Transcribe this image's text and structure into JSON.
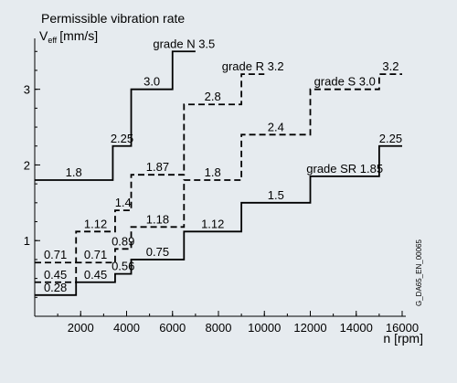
{
  "chart_data": {
    "type": "line",
    "title": "Permissible vibration rate",
    "ylabel_main": "V",
    "ylabel_sub": "eff",
    "ylabel_unit": "[mm/s]",
    "xlabel": "n  [rpm]",
    "figure_id": "G_DA65_EN_00065",
    "x_ticks": [
      2000,
      4000,
      6000,
      8000,
      10000,
      12000,
      14000,
      16000
    ],
    "x_tick_labels": [
      "2000",
      "4000",
      "6000",
      "8000",
      "10000",
      "12000",
      "14000",
      "16000"
    ],
    "y_ticks": [
      1,
      2,
      3
    ],
    "y_tick_labels": [
      "1",
      "2",
      "3"
    ],
    "xlim": [
      0,
      16000
    ],
    "ylim": [
      0,
      3.6
    ],
    "grid": false,
    "step_curve_type": "step",
    "series": [
      {
        "name": "grade N",
        "line_style": "solid",
        "steps": [
          {
            "x_start": 0,
            "x_end": 3400,
            "y": 1.8,
            "label": "1.8"
          },
          {
            "x_start": 3400,
            "x_end": 4200,
            "y": 2.25,
            "label": "2.25"
          },
          {
            "x_start": 4200,
            "x_end": 6000,
            "y": 3.0,
            "label": "3.0"
          },
          {
            "x_start": 6000,
            "x_end": 7000,
            "y": 3.5,
            "label": "grade N 3.5"
          }
        ]
      },
      {
        "name": "grade R",
        "line_style": "dashed",
        "steps": [
          {
            "x_start": 0,
            "x_end": 1800,
            "y": 0.71,
            "label": "0.71"
          },
          {
            "x_start": 1800,
            "x_end": 3500,
            "y": 1.12,
            "label": "1.12"
          },
          {
            "x_start": 3500,
            "x_end": 4200,
            "y": 1.4,
            "label": "1.4"
          },
          {
            "x_start": 4200,
            "x_end": 6500,
            "y": 1.87,
            "label": "1.87"
          },
          {
            "x_start": 6500,
            "x_end": 9000,
            "y": 2.8,
            "label": "2.8"
          },
          {
            "x_start": 9000,
            "x_end": 10000,
            "y": 3.2,
            "label": "grade R 3.2"
          }
        ]
      },
      {
        "name": "grade S",
        "line_style": "dashed",
        "steps": [
          {
            "x_start": 0,
            "x_end": 1800,
            "y": 0.45,
            "label": "0.45"
          },
          {
            "x_start": 1800,
            "x_end": 3500,
            "y": 0.71,
            "label": "0.71"
          },
          {
            "x_start": 3500,
            "x_end": 4200,
            "y": 0.89,
            "label": "0.89"
          },
          {
            "x_start": 4200,
            "x_end": 6500,
            "y": 1.18,
            "label": "1.18"
          },
          {
            "x_start": 6500,
            "x_end": 9000,
            "y": 1.8,
            "label": "1.8"
          },
          {
            "x_start": 9000,
            "x_end": 12000,
            "y": 2.4,
            "label": "2.4"
          },
          {
            "x_start": 12000,
            "x_end": 15000,
            "y": 3.0,
            "label": "grade S 3.0"
          },
          {
            "x_start": 15000,
            "x_end": 16000,
            "y": 3.2,
            "label": "3.2"
          }
        ]
      },
      {
        "name": "grade SR",
        "line_style": "solid",
        "steps": [
          {
            "x_start": 0,
            "x_end": 1800,
            "y": 0.28,
            "label": "0.28"
          },
          {
            "x_start": 1800,
            "x_end": 3500,
            "y": 0.45,
            "label": "0.45"
          },
          {
            "x_start": 3500,
            "x_end": 4200,
            "y": 0.56,
            "label": "0.56"
          },
          {
            "x_start": 4200,
            "x_end": 6500,
            "y": 0.75,
            "label": "0.75"
          },
          {
            "x_start": 6500,
            "x_end": 9000,
            "y": 1.12,
            "label": "1.12"
          },
          {
            "x_start": 9000,
            "x_end": 12000,
            "y": 1.5,
            "label": "1.5"
          },
          {
            "x_start": 12000,
            "x_end": 15000,
            "y": 1.85,
            "label": "grade SR 1.85"
          },
          {
            "x_start": 15000,
            "x_end": 16000,
            "y": 2.25,
            "label": "2.25"
          }
        ]
      }
    ]
  }
}
